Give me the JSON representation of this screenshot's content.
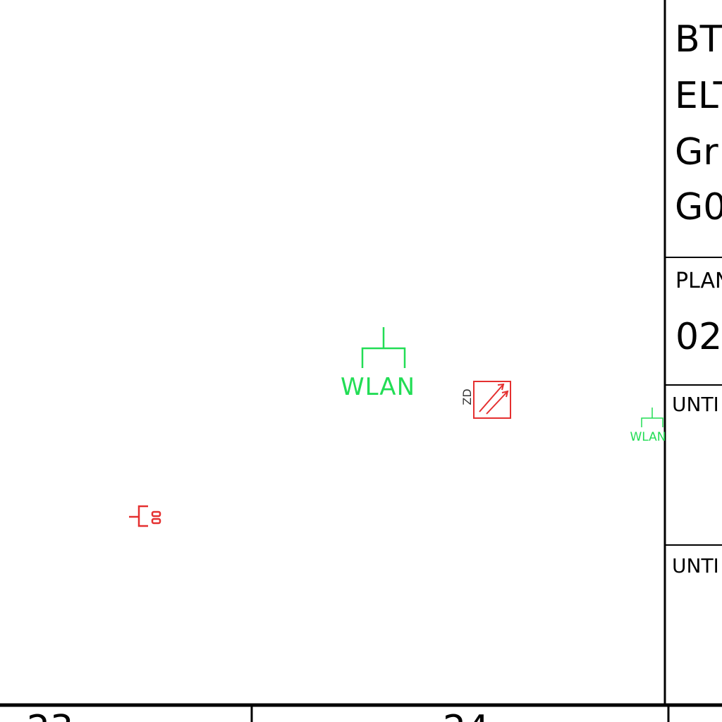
{
  "title_block": {
    "line1": "BT",
    "line2": "ELT",
    "line3": "Gr",
    "line4": "G0",
    "plan_label": "PLAN",
    "plan_number": "02",
    "sub_label_1": "UNTI",
    "sub_label_2": "UNTI"
  },
  "symbols": {
    "wlan_large_label": "WLAN",
    "wlan_small_label": "WLAN",
    "zd_label": "ZD"
  },
  "grid": {
    "label_left": "23",
    "label_right": "24"
  },
  "colors": {
    "wlan_green": "#22dd55",
    "device_red": "#e53030",
    "line_black": "#000000"
  }
}
